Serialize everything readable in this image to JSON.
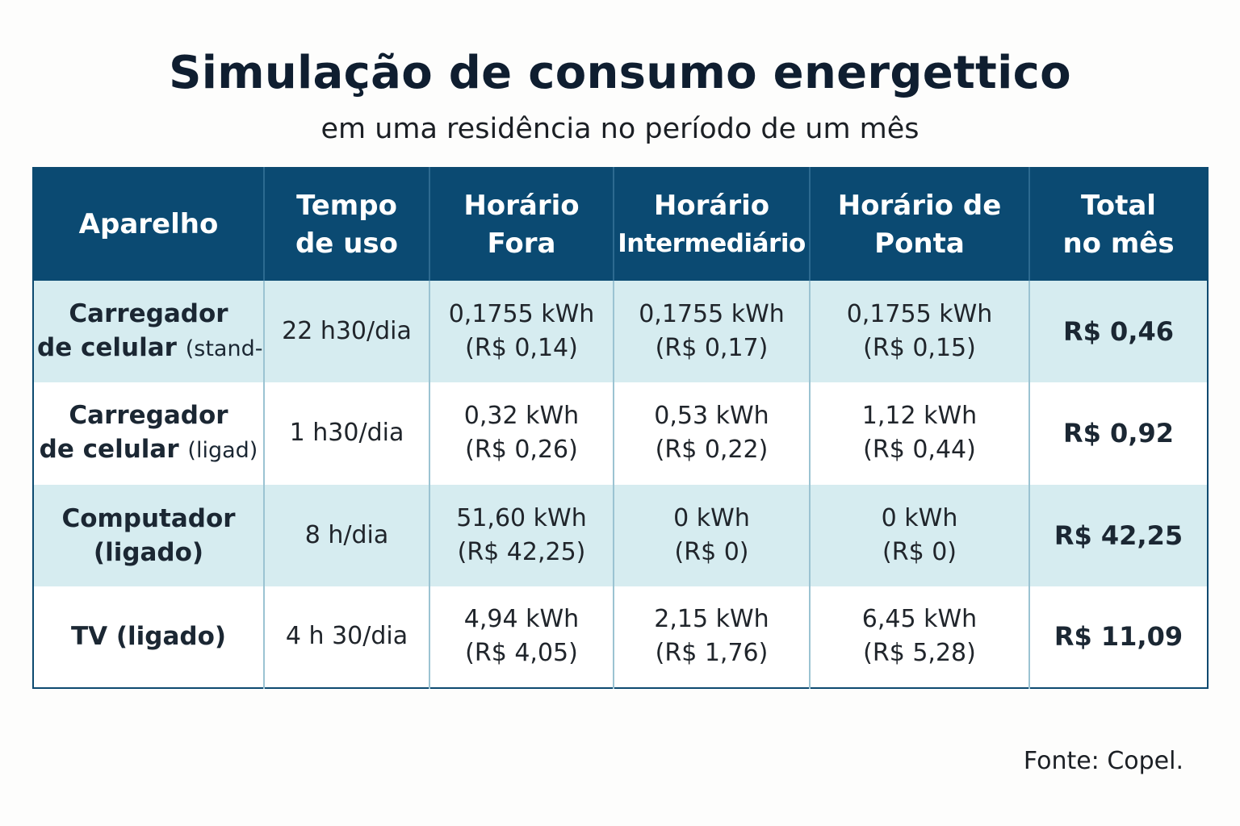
{
  "title": "Simulação de consumo energettico",
  "subtitle": "em uma residência no período de um mês",
  "table": {
    "headers": [
      {
        "line1": "Aparelho",
        "line2": ""
      },
      {
        "line1": "Tempo",
        "line2": "de uso"
      },
      {
        "line1": "Horário",
        "line2": "Fora"
      },
      {
        "line1": "Horário",
        "line2": "Intermediário"
      },
      {
        "line1": "Horário de",
        "line2": "Ponta"
      },
      {
        "line1": "Total",
        "line2": "no mês"
      }
    ],
    "rows": [
      {
        "device_line1": "Carregador",
        "device_line2": "de celular",
        "device_note": "(stand-",
        "usage": "22 h30/dia",
        "fora_kwh": "0,1755 kWh",
        "fora_cost": "(R$ 0,14)",
        "inter_kwh": "0,1755 kWh",
        "inter_cost": "(R$ 0,17)",
        "ponta_kwh": "0,1755 kWh",
        "ponta_cost": "(R$ 0,15)",
        "total": "R$ 0,46"
      },
      {
        "device_line1": "Carregador",
        "device_line2": "de celular",
        "device_note": "(ligad)",
        "usage": "1 h30/dia",
        "fora_kwh": "0,32 kWh",
        "fora_cost": "(R$ 0,26)",
        "inter_kwh": "0,53 kWh",
        "inter_cost": "(R$ 0,22)",
        "ponta_kwh": "1,12 kWh",
        "ponta_cost": "(R$ 0,44)",
        "total": "R$ 0,92"
      },
      {
        "device_line1": "Computador",
        "device_line2": "(ligado)",
        "device_note": "",
        "usage": "8 h/dia",
        "fora_kwh": "51,60 kWh",
        "fora_cost": "(R$ 42,25)",
        "inter_kwh": "0 kWh",
        "inter_cost": "(R$ 0)",
        "ponta_kwh": "0 kWh",
        "ponta_cost": "(R$ 0)",
        "total": "R$ 42,25"
      },
      {
        "device_line1": "TV (ligado)",
        "device_line2": "",
        "device_note": "",
        "usage": "4 h 30/dia",
        "fora_kwh": "4,94 kWh",
        "fora_cost": "(R$ 4,05)",
        "inter_kwh": "2,15 kWh",
        "inter_cost": "(R$ 1,76)",
        "ponta_kwh": "6,45 kWh",
        "ponta_cost": "(R$ 5,28)",
        "total": "R$ 11,09"
      }
    ]
  },
  "source": "Fonte: Copel."
}
